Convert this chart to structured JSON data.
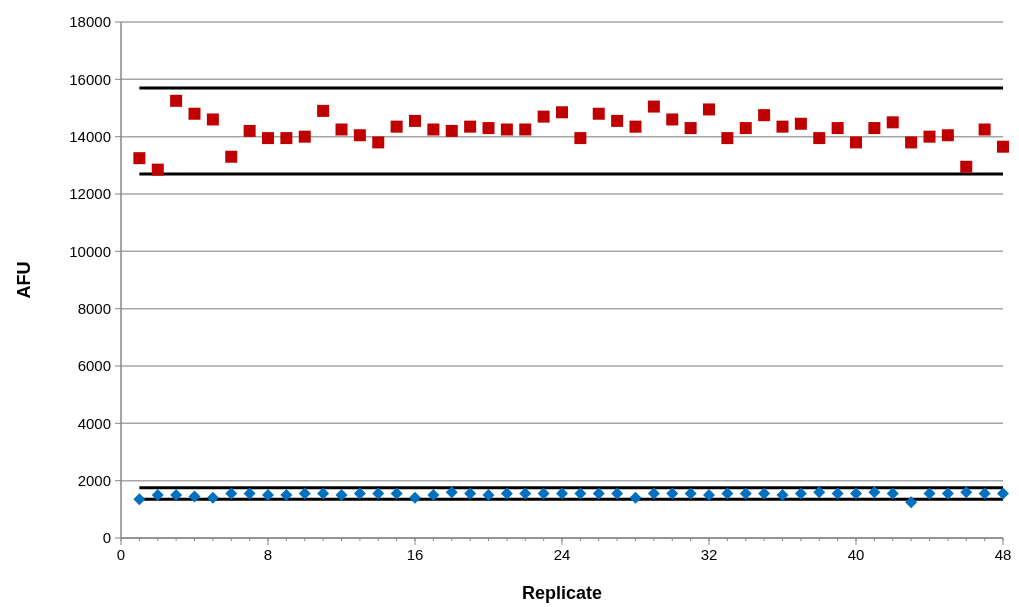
{
  "chart_data": {
    "type": "scatter",
    "xlabel": "Replicate",
    "ylabel": "AFU",
    "x": [
      1,
      2,
      3,
      4,
      5,
      6,
      7,
      8,
      9,
      10,
      11,
      12,
      13,
      14,
      15,
      16,
      17,
      18,
      19,
      20,
      21,
      22,
      23,
      24,
      25,
      26,
      27,
      28,
      29,
      30,
      31,
      32,
      33,
      34,
      35,
      36,
      37,
      38,
      39,
      40,
      41,
      42,
      43,
      44,
      45,
      46,
      47,
      48
    ],
    "series": [
      {
        "color": "#c00000",
        "marker": "square",
        "values": [
          13250,
          12850,
          15250,
          14800,
          14600,
          13300,
          14200,
          13950,
          13950,
          14000,
          14900,
          14250,
          14050,
          13800,
          14350,
          14550,
          14250,
          14200,
          14350,
          14300,
          14250,
          14250,
          14700,
          14850,
          13950,
          14800,
          14550,
          14350,
          15050,
          14600,
          14300,
          14950,
          13950,
          14300,
          14750,
          14350,
          14450,
          13950,
          14300,
          13800,
          14300,
          14500,
          13800,
          14000,
          14050,
          12950,
          14250,
          13650
        ]
      },
      {
        "color": "#0070c0",
        "marker": "diamond",
        "values": [
          1350,
          1500,
          1500,
          1450,
          1400,
          1550,
          1550,
          1500,
          1500,
          1550,
          1550,
          1500,
          1550,
          1550,
          1550,
          1400,
          1500,
          1600,
          1550,
          1500,
          1550,
          1550,
          1550,
          1550,
          1550,
          1550,
          1550,
          1400,
          1550,
          1550,
          1550,
          1500,
          1550,
          1550,
          1550,
          1500,
          1550,
          1600,
          1550,
          1550,
          1600,
          1550,
          1250,
          1550,
          1550,
          1600,
          1550,
          1550
        ]
      }
    ],
    "xlim": [
      0,
      48
    ],
    "xticks": [
      0,
      8,
      16,
      24,
      32,
      40,
      48
    ],
    "ylim": [
      0,
      18000
    ],
    "yticks": [
      0,
      2000,
      4000,
      6000,
      8000,
      10000,
      12000,
      14000,
      16000,
      18000
    ],
    "grid": "y",
    "ref_lines": [
      {
        "axis": "y",
        "value": 15700,
        "color": "#000000"
      },
      {
        "axis": "y",
        "value": 12700,
        "color": "#000000"
      },
      {
        "axis": "y",
        "value": 1750,
        "color": "#000000"
      },
      {
        "axis": "y",
        "value": 1350,
        "color": "#000000"
      }
    ]
  }
}
